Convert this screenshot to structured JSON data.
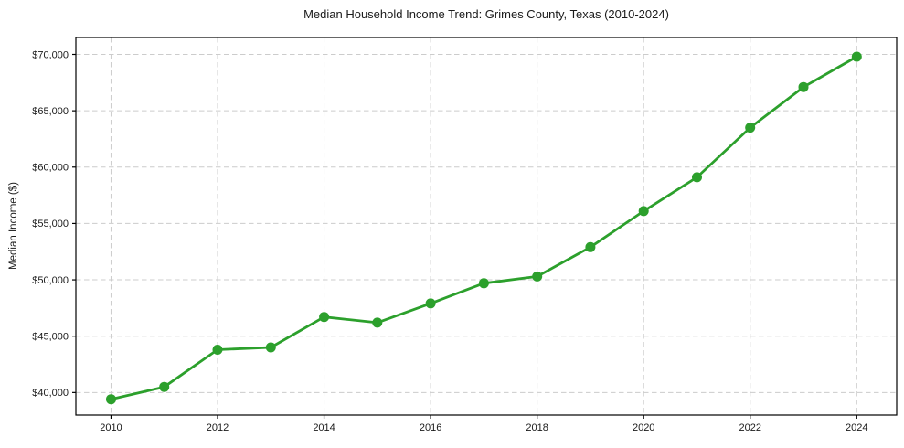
{
  "figure": {
    "background_color": "#ffffff",
    "text_color": "#1a1a1a"
  },
  "chart_data": {
    "type": "line",
    "title": "Median Household Income Trend: Grimes County, Texas (2010-2024)",
    "xlabel": "",
    "ylabel": "Median Income ($)",
    "x": [
      2010,
      2011,
      2012,
      2013,
      2014,
      2015,
      2016,
      2017,
      2018,
      2019,
      2020,
      2021,
      2022,
      2023,
      2024
    ],
    "values": [
      39400,
      40500,
      43800,
      44000,
      46700,
      46200,
      47900,
      49700,
      50300,
      52900,
      56100,
      59100,
      63500,
      67100,
      69800
    ],
    "series_name": "Median Household Income",
    "xticks": {
      "values": [
        2010,
        2012,
        2014,
        2016,
        2018,
        2020,
        2022,
        2024
      ],
      "labels": [
        "2010",
        "2012",
        "2014",
        "2016",
        "2018",
        "2020",
        "2022",
        "2024"
      ]
    },
    "yticks": {
      "values": [
        40000,
        45000,
        50000,
        55000,
        60000,
        65000,
        70000
      ],
      "labels": [
        "$40,000",
        "$45,000",
        "$50,000",
        "$55,000",
        "$60,000",
        "$65,000",
        "$70,000"
      ]
    },
    "xlim": [
      2009.34,
      2024.75
    ],
    "ylim": [
      38000,
      71500
    ],
    "grid": {
      "visible": true,
      "style": "dashed",
      "color": "#cccccc"
    },
    "line_color": "#2ca02c",
    "line_width": 2.8,
    "marker": {
      "shape": "circle",
      "color": "#2ca02c",
      "radius": 5.5
    },
    "spine_color": "#000000",
    "legend_position": "none"
  }
}
